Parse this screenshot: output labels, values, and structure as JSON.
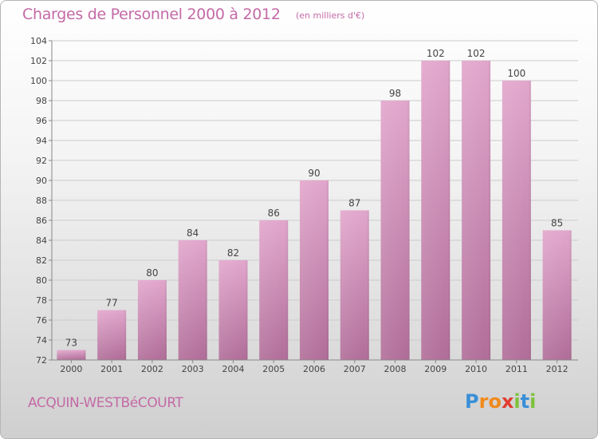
{
  "title": "Charges de Personnel 2000 à 2012",
  "subtitle": "(en milliers d'€)",
  "commune": "ACQUIN-WESTBéCOURT",
  "logo": {
    "text": "Proxiti",
    "letters": [
      "P",
      "r",
      "o",
      "x",
      "i",
      "t",
      "i"
    ],
    "colors": [
      "#3a8fd8",
      "#f08a1c",
      "#f08a1c",
      "#e23c2e",
      "#7cc23b",
      "#3a8fd8",
      "#7cc23b"
    ]
  },
  "colors": {
    "bar": "#c47ca8",
    "text": "#c46aa6",
    "axis": "#888888",
    "grid": "#cccccc"
  },
  "chart_data": {
    "type": "bar",
    "title": "Charges de Personnel 2000 à 2012",
    "subtitle": "(en milliers d'€)",
    "categories": [
      "2000",
      "2001",
      "2002",
      "2003",
      "2004",
      "2005",
      "2006",
      "2007",
      "2008",
      "2009",
      "2010",
      "2011",
      "2012"
    ],
    "values": [
      73,
      77,
      80,
      84,
      82,
      86,
      90,
      87,
      98,
      102,
      102,
      100,
      85
    ],
    "ylim": [
      72,
      104
    ],
    "yticks": [
      72,
      74,
      76,
      78,
      80,
      82,
      84,
      86,
      88,
      90,
      92,
      94,
      96,
      98,
      100,
      102,
      104
    ],
    "grid": true,
    "data_labels": true
  }
}
